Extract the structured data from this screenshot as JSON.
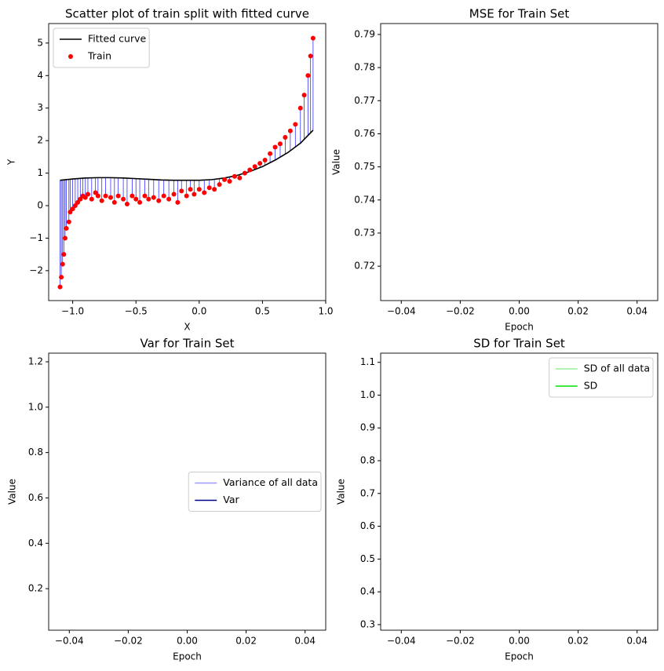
{
  "chart_data": [
    {
      "type": "scatter",
      "title": "Scatter plot of train split with fitted curve",
      "xlabel": "X",
      "ylabel": "Y",
      "xlim": [
        -1.19,
        1.0
      ],
      "ylim": [
        -2.92,
        5.6
      ],
      "xticks": [
        {
          "value": -1.0,
          "label": "−1.0"
        },
        {
          "value": -0.5,
          "label": "−0.5"
        },
        {
          "value": 0.0,
          "label": "0.0"
        },
        {
          "value": 0.5,
          "label": "0.5"
        },
        {
          "value": 1.0,
          "label": "1.0"
        }
      ],
      "yticks": [
        {
          "value": -2,
          "label": "−2"
        },
        {
          "value": -1,
          "label": "−1"
        },
        0,
        1,
        2,
        3,
        4,
        5
      ],
      "legend": "upper left",
      "residual_color": "#0000ff",
      "series": [
        {
          "name": "Fitted curve",
          "type": "line",
          "color": "#000000",
          "x": [
            -1.1,
            -1.0,
            -0.9,
            -0.8,
            -0.7,
            -0.6,
            -0.5,
            -0.4,
            -0.3,
            -0.2,
            -0.1,
            0.0,
            0.1,
            0.2,
            0.3,
            0.4,
            0.5,
            0.6,
            0.7,
            0.8,
            0.9
          ],
          "values": [
            0.78,
            0.82,
            0.85,
            0.86,
            0.86,
            0.85,
            0.83,
            0.81,
            0.79,
            0.78,
            0.78,
            0.78,
            0.8,
            0.85,
            0.93,
            1.05,
            1.2,
            1.4,
            1.63,
            1.92,
            2.32
          ]
        },
        {
          "name": "Train",
          "type": "scatter",
          "color": "#ff0000",
          "x": [
            -1.1,
            -1.09,
            -1.08,
            -1.07,
            -1.06,
            -1.05,
            -1.03,
            -1.02,
            -1.0,
            -0.98,
            -0.96,
            -0.94,
            -0.92,
            -0.9,
            -0.88,
            -0.85,
            -0.82,
            -0.8,
            -0.77,
            -0.74,
            -0.7,
            -0.67,
            -0.64,
            -0.6,
            -0.57,
            -0.53,
            -0.5,
            -0.47,
            -0.43,
            -0.4,
            -0.36,
            -0.32,
            -0.28,
            -0.24,
            -0.2,
            -0.17,
            -0.14,
            -0.1,
            -0.07,
            -0.04,
            0.0,
            0.04,
            0.08,
            0.12,
            0.16,
            0.2,
            0.24,
            0.28,
            0.32,
            0.36,
            0.4,
            0.44,
            0.48,
            0.52,
            0.56,
            0.6,
            0.64,
            0.68,
            0.72,
            0.76,
            0.8,
            0.83,
            0.86,
            0.88,
            0.9
          ],
          "values": [
            -2.5,
            -2.2,
            -1.8,
            -1.5,
            -1.0,
            -0.7,
            -0.5,
            -0.2,
            -0.1,
            0.0,
            0.1,
            0.2,
            0.3,
            0.25,
            0.35,
            0.2,
            0.4,
            0.3,
            0.15,
            0.3,
            0.25,
            0.1,
            0.3,
            0.2,
            0.05,
            0.3,
            0.2,
            0.1,
            0.3,
            0.2,
            0.25,
            0.15,
            0.3,
            0.2,
            0.35,
            0.1,
            0.45,
            0.3,
            0.5,
            0.35,
            0.5,
            0.4,
            0.55,
            0.5,
            0.65,
            0.8,
            0.75,
            0.9,
            0.85,
            1.0,
            1.1,
            1.2,
            1.3,
            1.4,
            1.6,
            1.8,
            1.9,
            2.1,
            2.3,
            2.5,
            3.0,
            3.4,
            4.0,
            4.6,
            5.15
          ]
        }
      ]
    },
    {
      "type": "line",
      "title": "MSE for Train Set",
      "xlabel": "Epoch",
      "ylabel": "Value",
      "xlim": [
        -0.047,
        0.047
      ],
      "ylim": [
        0.7096,
        0.7933
      ],
      "xticks": [
        {
          "value": -0.04,
          "label": "−0.04"
        },
        {
          "value": -0.02,
          "label": "−0.02"
        },
        {
          "value": 0.0,
          "label": "0.00"
        },
        {
          "value": 0.02,
          "label": "0.02"
        },
        {
          "value": 0.04,
          "label": "0.04"
        }
      ],
      "yticks": [
        {
          "value": 0.72,
          "label": "0.72"
        },
        {
          "value": 0.73,
          "label": "0.73"
        },
        {
          "value": 0.74,
          "label": "0.74"
        },
        {
          "value": 0.75,
          "label": "0.75"
        },
        {
          "value": 0.76,
          "label": "0.76"
        },
        {
          "value": 0.77,
          "label": "0.77"
        },
        {
          "value": 0.78,
          "label": "0.78"
        },
        {
          "value": 0.79,
          "label": "0.79"
        }
      ],
      "series": []
    },
    {
      "type": "line",
      "title": "Var for Train Set",
      "xlabel": "Epoch",
      "ylabel": "Value",
      "xlim": [
        -0.047,
        0.047
      ],
      "ylim": [
        0.017,
        1.238
      ],
      "xticks": [
        {
          "value": -0.04,
          "label": "−0.04"
        },
        {
          "value": -0.02,
          "label": "−0.02"
        },
        {
          "value": 0.0,
          "label": "0.00"
        },
        {
          "value": 0.02,
          "label": "0.02"
        },
        {
          "value": 0.04,
          "label": "0.04"
        }
      ],
      "yticks": [
        0.2,
        0.4,
        0.6,
        0.8,
        {
          "value": 1.0,
          "label": "1.0"
        },
        1.2
      ],
      "legend": "center right",
      "series": [
        {
          "name": "Variance of all data",
          "type": "line",
          "color": "#9999ff",
          "x": [],
          "values": []
        },
        {
          "name": "Var",
          "type": "line",
          "color": "#00008b",
          "x": [],
          "values": []
        }
      ]
    },
    {
      "type": "line",
      "title": "SD for Train Set",
      "xlabel": "Epoch",
      "ylabel": "Value",
      "xlim": [
        -0.047,
        0.047
      ],
      "ylim": [
        0.283,
        1.128
      ],
      "xticks": [
        {
          "value": -0.04,
          "label": "−0.04"
        },
        {
          "value": -0.02,
          "label": "−0.02"
        },
        {
          "value": 0.0,
          "label": "0.00"
        },
        {
          "value": 0.02,
          "label": "0.02"
        },
        {
          "value": 0.04,
          "label": "0.04"
        }
      ],
      "yticks": [
        0.3,
        0.4,
        0.5,
        0.6,
        0.7,
        0.8,
        0.9,
        {
          "value": 1.0,
          "label": "1.0"
        },
        1.1
      ],
      "legend": "upper right",
      "series": [
        {
          "name": "SD of all data",
          "type": "line",
          "color": "#99ee99",
          "x": [],
          "values": []
        },
        {
          "name": "SD",
          "type": "line",
          "color": "#00e000",
          "x": [],
          "values": []
        }
      ]
    }
  ]
}
